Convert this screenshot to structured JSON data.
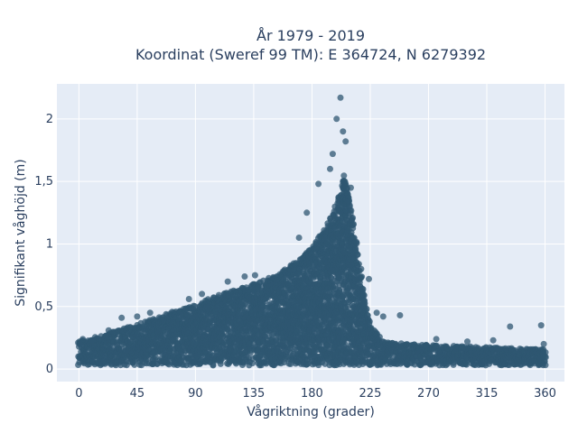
{
  "chart_data": {
    "type": "scatter",
    "title_line1": "År 1979 - 2019",
    "title_line2": "Koordinat (Sweref 99 TM): E 364724, N 6279392",
    "xlabel": "Vågriktning (grader)",
    "ylabel": "Signifikant våghöjd (m)",
    "xlim": [
      -17,
      375
    ],
    "ylim": [
      -0.1,
      2.28
    ],
    "x_ticks": [
      0,
      45,
      90,
      135,
      180,
      225,
      270,
      315,
      360
    ],
    "x_tick_labels": [
      "0",
      "45",
      "90",
      "135",
      "180",
      "225",
      "270",
      "315",
      "360"
    ],
    "y_ticks": [
      0,
      0.5,
      1,
      1.5,
      2
    ],
    "y_tick_labels": [
      "0",
      "0,5",
      "1",
      "1,5",
      "2"
    ],
    "grid": true,
    "colors": {
      "plot_background": "#e5ecf6",
      "grid": "#ffffff",
      "marker": "#2f5771"
    },
    "series": [
      {
        "marker_opacity": 0.75,
        "envelope": [
          {
            "x": 0,
            "y": 0.22
          },
          {
            "x": 20,
            "y": 0.28
          },
          {
            "x": 45,
            "y": 0.36
          },
          {
            "x": 70,
            "y": 0.45
          },
          {
            "x": 90,
            "y": 0.52
          },
          {
            "x": 110,
            "y": 0.6
          },
          {
            "x": 130,
            "y": 0.66
          },
          {
            "x": 150,
            "y": 0.74
          },
          {
            "x": 170,
            "y": 0.88
          },
          {
            "x": 180,
            "y": 0.98
          },
          {
            "x": 190,
            "y": 1.12
          },
          {
            "x": 200,
            "y": 1.35
          },
          {
            "x": 205,
            "y": 1.55
          },
          {
            "x": 210,
            "y": 1.3
          },
          {
            "x": 215,
            "y": 0.95
          },
          {
            "x": 220,
            "y": 0.6
          },
          {
            "x": 225,
            "y": 0.35
          },
          {
            "x": 235,
            "y": 0.22
          },
          {
            "x": 260,
            "y": 0.2
          },
          {
            "x": 300,
            "y": 0.18
          },
          {
            "x": 330,
            "y": 0.17
          },
          {
            "x": 360,
            "y": 0.16
          }
        ],
        "outliers": [
          {
            "x": 1,
            "y": 0.2
          },
          {
            "x": 3,
            "y": 0.24
          },
          {
            "x": 10,
            "y": 0.23
          },
          {
            "x": 23,
            "y": 0.31
          },
          {
            "x": 33,
            "y": 0.41
          },
          {
            "x": 45,
            "y": 0.42
          },
          {
            "x": 55,
            "y": 0.45
          },
          {
            "x": 85,
            "y": 0.56
          },
          {
            "x": 95,
            "y": 0.6
          },
          {
            "x": 115,
            "y": 0.7
          },
          {
            "x": 128,
            "y": 0.74
          },
          {
            "x": 136,
            "y": 0.75
          },
          {
            "x": 170,
            "y": 1.05
          },
          {
            "x": 176,
            "y": 1.25
          },
          {
            "x": 185,
            "y": 1.48
          },
          {
            "x": 194,
            "y": 1.6
          },
          {
            "x": 196,
            "y": 1.72
          },
          {
            "x": 199,
            "y": 2.0
          },
          {
            "x": 202,
            "y": 2.17
          },
          {
            "x": 204,
            "y": 1.9
          },
          {
            "x": 206,
            "y": 1.82
          },
          {
            "x": 210,
            "y": 1.45
          },
          {
            "x": 218,
            "y": 0.8
          },
          {
            "x": 224,
            "y": 0.72
          },
          {
            "x": 230,
            "y": 0.45
          },
          {
            "x": 235,
            "y": 0.42
          },
          {
            "x": 248,
            "y": 0.43
          },
          {
            "x": 276,
            "y": 0.24
          },
          {
            "x": 300,
            "y": 0.22
          },
          {
            "x": 320,
            "y": 0.23
          },
          {
            "x": 333,
            "y": 0.34
          },
          {
            "x": 357,
            "y": 0.35
          },
          {
            "x": 359,
            "y": 0.2
          },
          {
            "x": 359,
            "y": 0.1
          }
        ]
      }
    ]
  }
}
